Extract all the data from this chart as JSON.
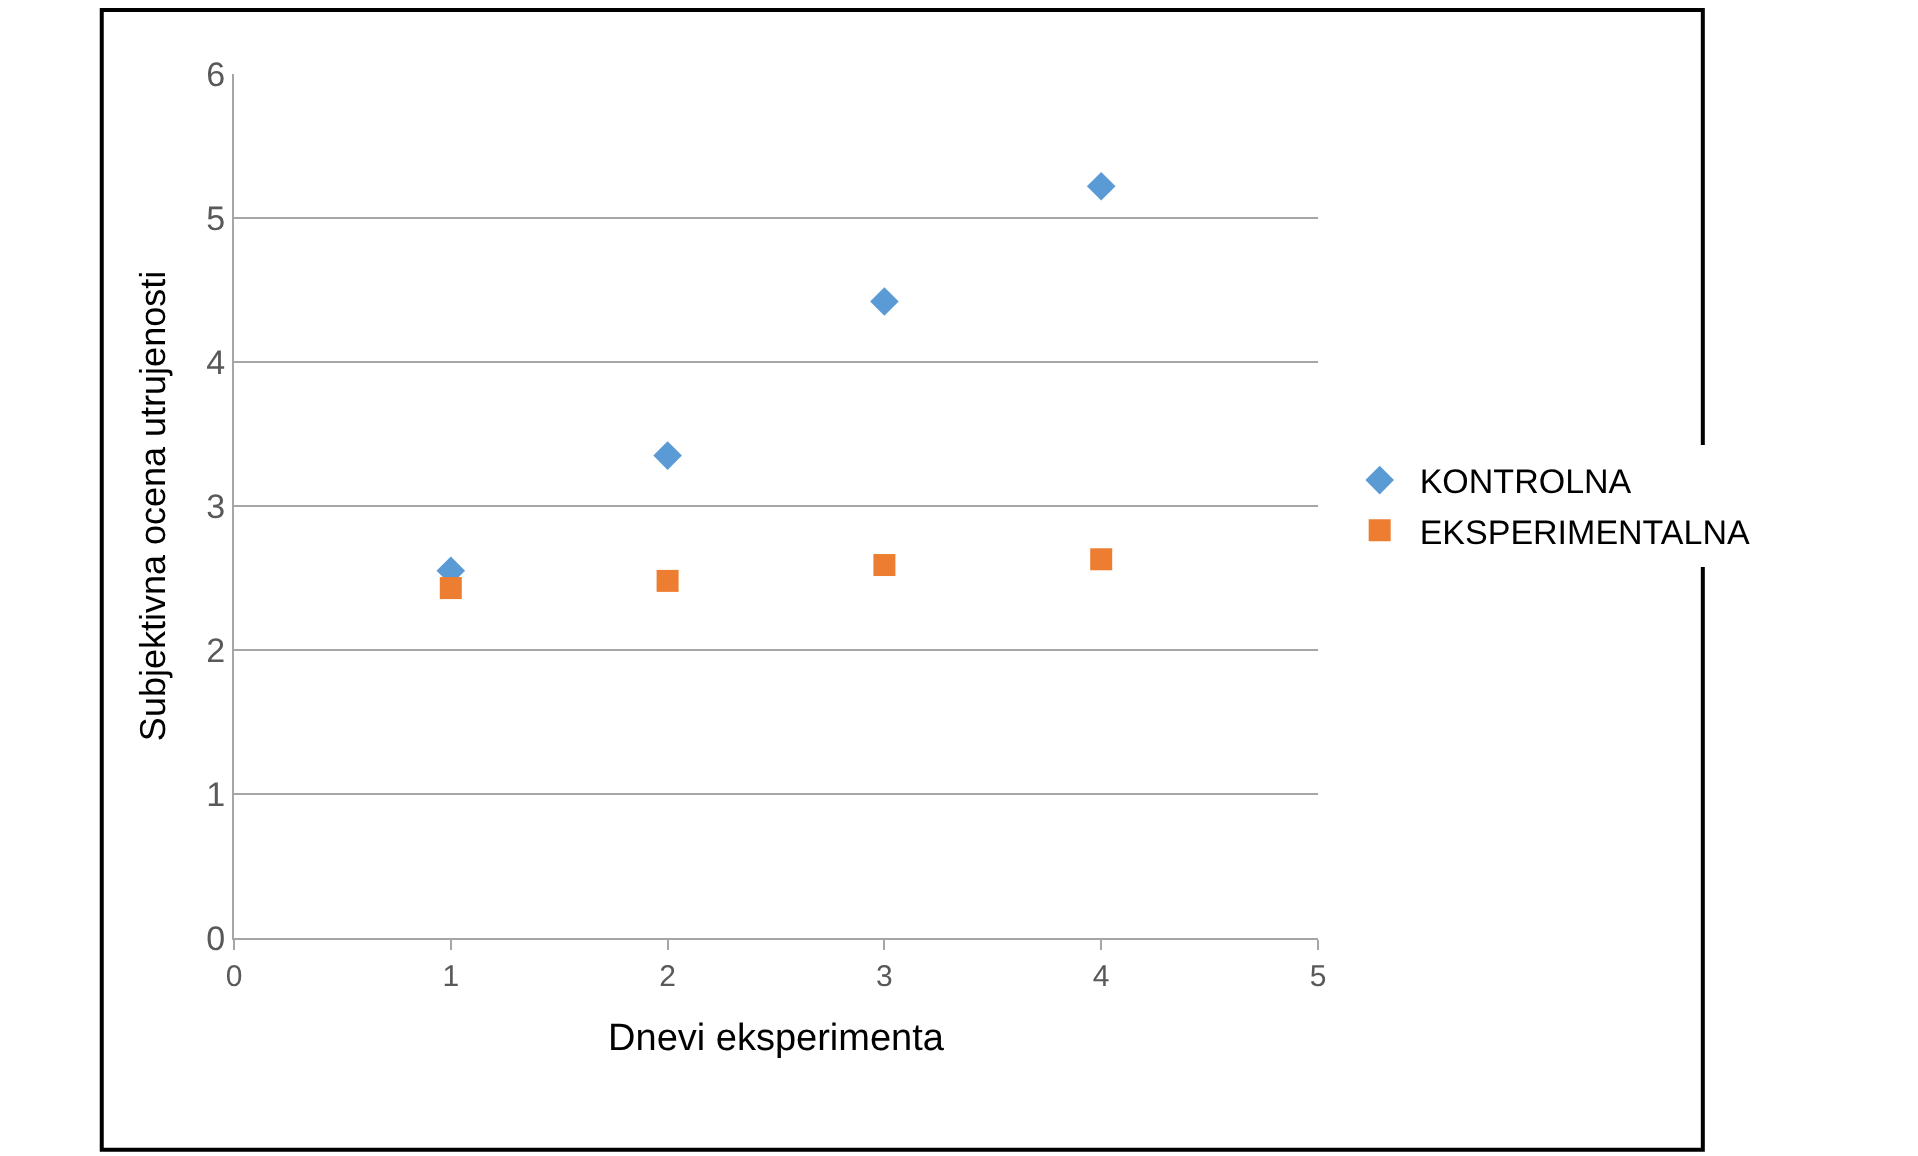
{
  "chart_data": {
    "type": "scatter",
    "xlabel": "Dnevi eksperimenta",
    "ylabel": "Subjektivna ocena utrujenosti",
    "x": [
      1,
      2,
      3,
      4
    ],
    "series": [
      {
        "name": "KONTROLNA",
        "color": "#5b9bd5",
        "marker": "diamond",
        "values": [
          2.55,
          3.35,
          4.42,
          5.22
        ]
      },
      {
        "name": "EKSPERIMENTALNA",
        "color": "#ed7d31",
        "marker": "square",
        "values": [
          2.43,
          2.48,
          2.59,
          2.63
        ]
      }
    ],
    "xlim": [
      0,
      5
    ],
    "xticks": [
      0,
      1,
      2,
      3,
      4,
      5
    ],
    "ylim": [
      0,
      6
    ],
    "yticks": [
      0,
      1,
      2,
      3,
      4,
      5,
      6
    ],
    "grid": "y",
    "legend": "right"
  }
}
